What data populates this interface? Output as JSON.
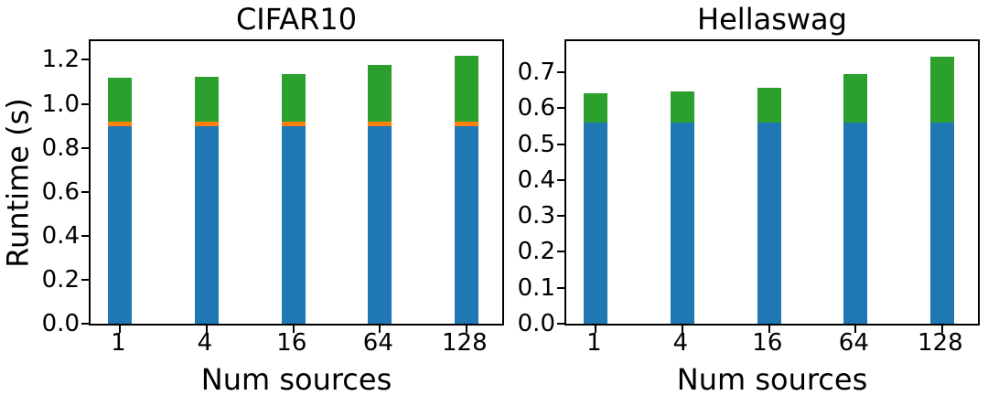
{
  "figure": {
    "background": "#ffffff",
    "text_color": "#000000",
    "axis_color": "#000000"
  },
  "chart_data": [
    {
      "type": "bar",
      "stacked": true,
      "title": "CIFAR10",
      "xlabel": "Num sources",
      "ylabel": "Runtime (s)",
      "categories": [
        "1",
        "4",
        "16",
        "64",
        "128"
      ],
      "series": [
        {
          "name": "blue-segment",
          "color": "#1f77b4",
          "values": [
            0.9,
            0.9,
            0.9,
            0.9,
            0.9
          ]
        },
        {
          "name": "orange-segment",
          "color": "#ff7f0e",
          "values": [
            0.02,
            0.02,
            0.02,
            0.02,
            0.02
          ]
        },
        {
          "name": "green-segment",
          "color": "#2ca02c",
          "values": [
            0.2,
            0.205,
            0.215,
            0.255,
            0.3
          ]
        }
      ],
      "totals": [
        1.12,
        1.125,
        1.135,
        1.175,
        1.22
      ],
      "ylim": [
        0,
        1.285
      ],
      "yticks": [
        0.0,
        0.2,
        0.4,
        0.6,
        0.8,
        1.0,
        1.2
      ],
      "ytick_labels": [
        "0.0",
        "0.2",
        "0.4",
        "0.6",
        "0.8",
        "1.0",
        "1.2"
      ],
      "grid": false,
      "legend": "none"
    },
    {
      "type": "bar",
      "stacked": true,
      "title": "Hellaswag",
      "xlabel": "Num sources",
      "ylabel": "",
      "categories": [
        "1",
        "4",
        "16",
        "64",
        "128"
      ],
      "series": [
        {
          "name": "blue-segment",
          "color": "#1f77b4",
          "values": [
            0.56,
            0.56,
            0.56,
            0.56,
            0.56
          ]
        },
        {
          "name": "green-segment",
          "color": "#2ca02c",
          "values": [
            0.083,
            0.087,
            0.098,
            0.135,
            0.185
          ]
        }
      ],
      "totals": [
        0.643,
        0.647,
        0.658,
        0.695,
        0.745
      ],
      "ylim": [
        0,
        0.787
      ],
      "yticks": [
        0.0,
        0.1,
        0.2,
        0.3,
        0.4,
        0.5,
        0.6,
        0.7
      ],
      "ytick_labels": [
        "0.0",
        "0.1",
        "0.2",
        "0.3",
        "0.4",
        "0.5",
        "0.6",
        "0.7"
      ],
      "grid": false,
      "legend": "none"
    }
  ]
}
